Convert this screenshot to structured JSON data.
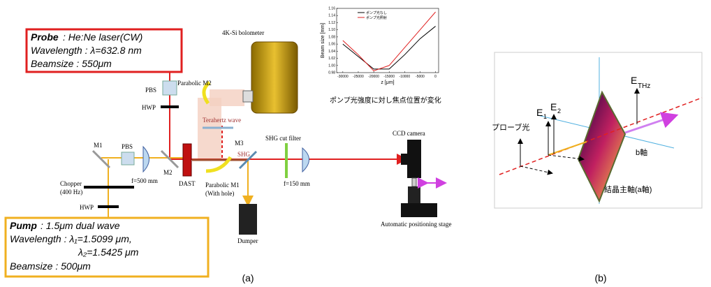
{
  "probe": {
    "label": "Probe",
    "laser": ": He:Ne laser(CW)",
    "wavelength": "Wavelength : λ=632.8 nm",
    "beamsize": "Beamsize : 550μm"
  },
  "pump": {
    "label": "Pump",
    "source": ": 1.5μm dual  wave",
    "wavelength1": "Wavelength : λ₁=1.5099 μm,",
    "wavelength2": "λ₂=1.5425 μm",
    "beamsize": "Beamsize : 500μm"
  },
  "labels": {
    "bolometer": "4K-Si bolometer",
    "parabolic_m2": "Parabolic M2",
    "pbs_top": "PBS",
    "hwp_top": "HWP",
    "terahertz": "Terahertz wave",
    "m3": "M3",
    "shg": "SHG",
    "shg_filter": "SHG cut filter",
    "ccd": "CCD camera",
    "m1": "M1",
    "pbs_left": "PBS",
    "m2": "M2",
    "dast": "DAST",
    "f500": "f=500 mm",
    "chopper": "Chopper",
    "chopper_freq": "(400 Hz)",
    "hwp_bottom": "HWP",
    "parabolic_m1": "Parabolic M1",
    "with_hole": "(With hole)",
    "f150": "f=150 mm",
    "dumper": "Dumper",
    "stage": "Automatic positioning stage"
  },
  "inset": {
    "type": "line",
    "x_label": "z [μm]",
    "y_label": "Beam size [mm]",
    "caption": "ポンプ光強度に対し焦点位置が変化",
    "x": [
      -30000,
      -25000,
      -20000,
      -15000,
      -10000,
      -5000,
      0
    ],
    "xlim": [
      -32000,
      1000
    ],
    "xticks": [
      -30000,
      -25000,
      -20000,
      -15000,
      -10000,
      -5000,
      0
    ],
    "ylim": [
      0.98,
      1.16
    ],
    "yticks": [
      0.98,
      {
        "value": 1.0,
        "label": "1.00"
      },
      1.02,
      1.04,
      1.06,
      1.08,
      {
        "value": 1.1,
        "label": "1.10"
      },
      1.12,
      1.14,
      1.16
    ],
    "series": [
      {
        "name": "ポンプ光なし",
        "color": "#000000",
        "values": [
          1.06,
          1.025,
          0.99,
          0.99,
          1.03,
          1.075,
          1.11
        ]
      },
      {
        "name": "ポンプ光照射",
        "color": "#e02020",
        "values": [
          1.07,
          1.03,
          0.985,
          1.0,
          1.05,
          1.1,
          1.15
        ]
      }
    ]
  },
  "panel_b": {
    "e": "E",
    "thz": "THz",
    "e1": "E",
    "e1_sub": "1",
    "e2": "E",
    "e2_sub": "2",
    "probe": "プローブ光",
    "b_axis": "b軸",
    "a_axis": "結晶主軸(a軸)"
  },
  "captions": {
    "a": "(a)",
    "b": "(b)"
  }
}
